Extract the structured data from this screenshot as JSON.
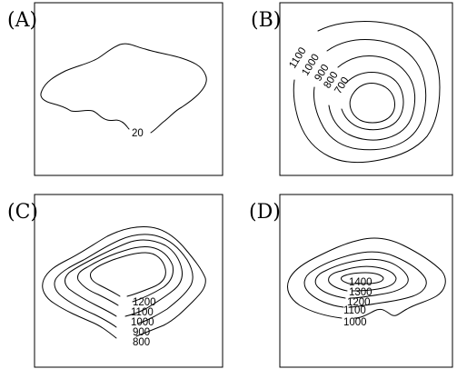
{
  "panels": [
    {
      "id": "A",
      "label": "(A)",
      "contour_labels": [
        "20"
      ]
    },
    {
      "id": "B",
      "label": "(B)",
      "contour_labels": [
        "1100",
        "1000",
        "900",
        "800",
        "700"
      ]
    },
    {
      "id": "C",
      "label": "(C)",
      "contour_labels": [
        "1200",
        "1100",
        "1000",
        "900",
        "800"
      ]
    },
    {
      "id": "D",
      "label": "(D)",
      "contour_labels": [
        "1400",
        "1300",
        "1200",
        "1100",
        "1000"
      ]
    }
  ]
}
